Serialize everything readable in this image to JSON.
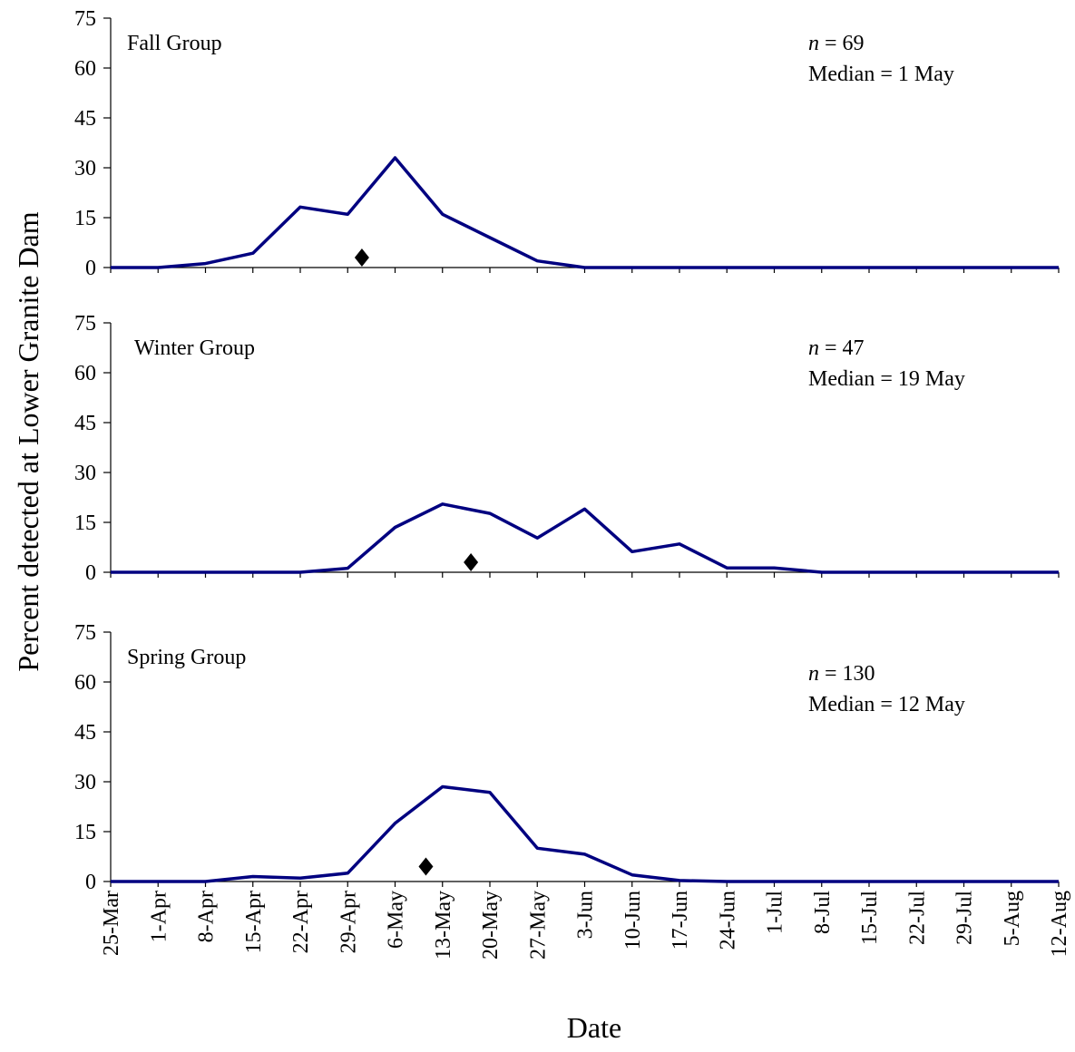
{
  "chart_data": {
    "type": "line",
    "ylabel": "Percent detected at Lower Granite Dam",
    "xlabel": "Date",
    "x_categories": [
      "25-Mar",
      "1-Apr",
      "8-Apr",
      "15-Apr",
      "22-Apr",
      "29-Apr",
      "6-May",
      "13-May",
      "20-May",
      "27-May",
      "3-Jun",
      "10-Jun",
      "17-Jun",
      "24-Jun",
      "1-Jul",
      "8-Jul",
      "15-Jul",
      "22-Jul",
      "29-Jul",
      "5-Aug",
      "12-Aug"
    ],
    "y_ticks": [
      0,
      15,
      30,
      45,
      60,
      75
    ],
    "ylim": [
      0,
      75
    ],
    "grid": false,
    "line_color": "#000080",
    "panels": [
      {
        "title": "Fall Group",
        "n_label": "n",
        "n_value": "= 69",
        "median_text": "Median = 1 May",
        "median_x": 5.3,
        "median_y": 3,
        "values": [
          0,
          0,
          1.2,
          4.3,
          18.2,
          16.0,
          33.0,
          16.0,
          9.0,
          2.0,
          0,
          0,
          0,
          0,
          0,
          0,
          0,
          0,
          0,
          0,
          0
        ]
      },
      {
        "title": "Winter Group",
        "n_label": "n",
        "n_value": "= 47",
        "median_text": "Median = 19 May",
        "median_x": 7.6,
        "median_y": 3,
        "values": [
          0,
          0,
          0,
          0,
          0,
          1.2,
          13.5,
          20.5,
          17.7,
          10.3,
          19.0,
          6.2,
          8.5,
          1.3,
          1.3,
          0,
          0,
          0,
          0,
          0,
          0
        ]
      },
      {
        "title": "Spring Group",
        "n_label": "n",
        "n_value": "= 130",
        "median_text": "Median = 12 May",
        "median_x": 6.65,
        "median_y": 4.5,
        "values": [
          0,
          0,
          0,
          1.5,
          1.0,
          2.5,
          17.5,
          28.5,
          26.8,
          10.0,
          8.2,
          2.0,
          0.3,
          0,
          0,
          0,
          0,
          0,
          0,
          0,
          0
        ]
      }
    ]
  }
}
